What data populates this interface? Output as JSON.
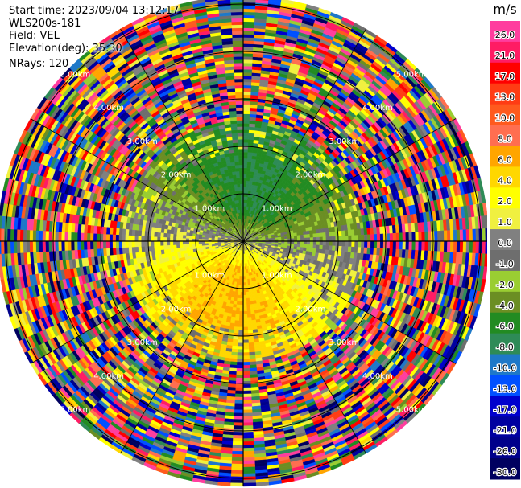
{
  "header": {
    "start_time": "Start time: 2023/09/04 13:12:17",
    "instrument": "WLS200s-181",
    "field": "Field: VEL",
    "elevation": "Elevation(deg): 35.30",
    "nrays": "NRays: 120"
  },
  "chart_data": {
    "type": "heatmap",
    "projection": "polar-ppi",
    "nrays": 120,
    "range_rings_km": [
      1.0,
      2.0,
      3.0,
      4.0,
      5.0
    ],
    "range_ring_label": "km",
    "colorbar": {
      "unit": "m/s",
      "levels": [
        "26.0",
        "21.0",
        "17.0",
        "13.0",
        "10.0",
        "8.0",
        "6.0",
        "4.0",
        "2.0",
        "1.0",
        "0.0",
        "-1.0",
        "-2.0",
        "-4.0",
        "-6.0",
        "-8.0",
        "-10.0",
        "-13.0",
        "-17.0",
        "-21.0",
        "-26.0",
        "-30.0"
      ],
      "colors": [
        "#ff3e9e",
        "#ff1c64",
        "#ff0000",
        "#ff3c14",
        "#ff5a1e",
        "#ff6e50",
        "#ffa500",
        "#ffd700",
        "#ffff00",
        "#f0f040",
        "#808080",
        "#6e6e6e",
        "#9acd32",
        "#6b8e23",
        "#228b22",
        "#2e8b57",
        "#1e78c8",
        "#0050ff",
        "#0000cd",
        "#0000a0",
        "#00008b",
        "#000060"
      ]
    }
  }
}
